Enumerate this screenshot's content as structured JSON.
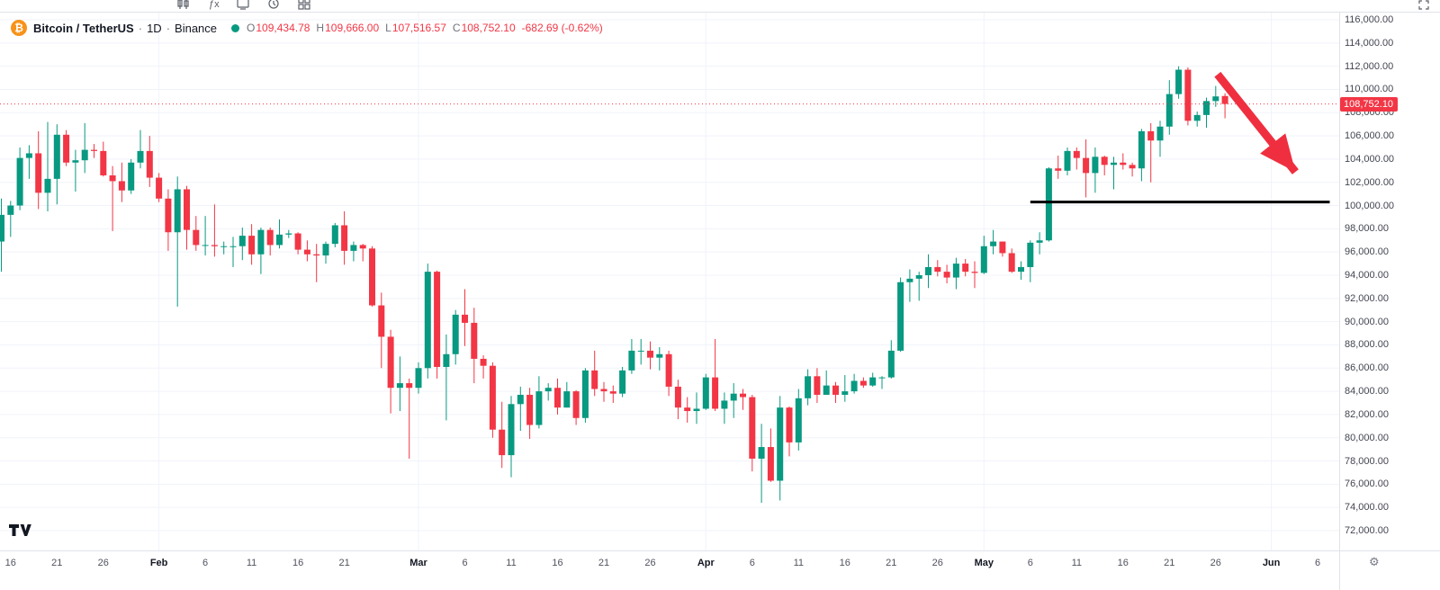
{
  "toolbar": {
    "icons": [
      {
        "name": "chart-type-candles"
      },
      {
        "name": "indicators"
      },
      {
        "name": "templates"
      },
      {
        "name": "alert-clock"
      },
      {
        "name": "grid-layout"
      }
    ]
  },
  "header": {
    "symbol_icon_glyph": "₿",
    "symbol": "Bitcoin / TetherUS",
    "separator": "·",
    "interval": "1D",
    "exchange": "Binance",
    "ohlc": {
      "o_label": "O",
      "o": "109,434.78",
      "h_label": "H",
      "h": "109,666.00",
      "l_label": "L",
      "l": "107,516.57",
      "c_label": "C",
      "c": "108,752.10",
      "change": "-682.69 (-0.62%)"
    }
  },
  "colors": {
    "up": "#089981",
    "down": "#f23645",
    "grid": "#f0f3fa",
    "axis_text": "#434651",
    "axis_border": "#e0e3eb",
    "current_price": "#f23645",
    "support_line": "#000000",
    "arrow": "#ef2f3f",
    "coin": "#f7931a"
  },
  "price_axis": {
    "ticks": [
      116000,
      114000,
      112000,
      110000,
      108000,
      106000,
      104000,
      102000,
      100000,
      98000,
      96000,
      94000,
      92000,
      90000,
      88000,
      86000,
      84000,
      82000,
      80000,
      78000,
      76000,
      74000,
      72000
    ],
    "current_price_label": "108,752.10"
  },
  "time_axis": {
    "labels": [
      {
        "text": "16",
        "index": 1
      },
      {
        "text": "21",
        "index": 6
      },
      {
        "text": "26",
        "index": 11
      },
      {
        "text": "Feb",
        "index": 17,
        "major": true
      },
      {
        "text": "6",
        "index": 22
      },
      {
        "text": "11",
        "index": 27
      },
      {
        "text": "16",
        "index": 32
      },
      {
        "text": "21",
        "index": 37
      },
      {
        "text": "Mar",
        "index": 45,
        "major": true
      },
      {
        "text": "6",
        "index": 50
      },
      {
        "text": "11",
        "index": 55
      },
      {
        "text": "16",
        "index": 60
      },
      {
        "text": "21",
        "index": 65
      },
      {
        "text": "26",
        "index": 70
      },
      {
        "text": "Apr",
        "index": 76,
        "major": true
      },
      {
        "text": "6",
        "index": 81
      },
      {
        "text": "11",
        "index": 86
      },
      {
        "text": "16",
        "index": 91
      },
      {
        "text": "21",
        "index": 96
      },
      {
        "text": "26",
        "index": 101
      },
      {
        "text": "May",
        "index": 106,
        "major": true
      },
      {
        "text": "6",
        "index": 111
      },
      {
        "text": "11",
        "index": 116
      },
      {
        "text": "16",
        "index": 121
      },
      {
        "text": "21",
        "index": 126
      },
      {
        "text": "26",
        "index": 131
      },
      {
        "text": "Jun",
        "index": 137,
        "major": true
      },
      {
        "text": "6",
        "index": 142
      }
    ]
  },
  "footer": {
    "settings_icon": "⚙"
  },
  "chart_data": {
    "type": "candlestick",
    "title": "Bitcoin / TetherUS · 1D · Binance",
    "symbol": "Bitcoin / TetherUS",
    "exchange": "Binance",
    "interval": "1D",
    "y_axis": {
      "min": 72000,
      "max": 116000,
      "tick_step": 2000,
      "unit": "USDT",
      "grid": true
    },
    "x_axis": {
      "unit": "day",
      "visible_span": "mid-January to early June"
    },
    "ohlc_current": {
      "open": 109434.78,
      "high": 109666.0,
      "low": 107516.57,
      "close": 108752.1,
      "change": -682.69,
      "change_percent": -0.62
    },
    "candles": [
      [
        96900,
        100600,
        94300,
        99200
      ],
      [
        99200,
        100400,
        97300,
        100000
      ],
      [
        100000,
        105000,
        99600,
        104100
      ],
      [
        104100,
        105200,
        102300,
        104500
      ],
      [
        104500,
        106400,
        99700,
        101100
      ],
      [
        101100,
        107200,
        99500,
        102300
      ],
      [
        102300,
        107000,
        100100,
        106100
      ],
      [
        106100,
        106500,
        103400,
        103700
      ],
      [
        103700,
        104800,
        101200,
        103900
      ],
      [
        103900,
        107100,
        102800,
        104800
      ],
      [
        104800,
        105300,
        104100,
        104700
      ],
      [
        104700,
        105500,
        102500,
        102600
      ],
      [
        102600,
        103400,
        97800,
        102100
      ],
      [
        102100,
        103700,
        100300,
        101300
      ],
      [
        101300,
        104000,
        101000,
        103700
      ],
      [
        103700,
        106500,
        103200,
        104700
      ],
      [
        104700,
        106000,
        101600,
        102400
      ],
      [
        102400,
        102800,
        100300,
        100600
      ],
      [
        100600,
        101400,
        96100,
        97700
      ],
      [
        97700,
        102500,
        91300,
        101400
      ],
      [
        101400,
        101700,
        96200,
        97900
      ],
      [
        97900,
        99100,
        96100,
        96600
      ],
      [
        96600,
        99100,
        95700,
        96600
      ],
      [
        96600,
        100100,
        95600,
        96500
      ],
      [
        96500,
        96900,
        95800,
        96500
      ],
      [
        96500,
        97300,
        94700,
        96500
      ],
      [
        96500,
        98100,
        95300,
        97400
      ],
      [
        97400,
        98400,
        94900,
        95800
      ],
      [
        95800,
        98100,
        94100,
        97900
      ],
      [
        97900,
        98100,
        95700,
        96600
      ],
      [
        96600,
        98800,
        96300,
        97500
      ],
      [
        97500,
        97900,
        97200,
        97600
      ],
      [
        97600,
        97700,
        95800,
        96200
      ],
      [
        96200,
        97000,
        95200,
        95800
      ],
      [
        95800,
        96700,
        93400,
        95700
      ],
      [
        95700,
        96900,
        95000,
        96700
      ],
      [
        96700,
        98500,
        96400,
        98300
      ],
      [
        98300,
        99500,
        94900,
        96100
      ],
      [
        96100,
        96900,
        95200,
        96600
      ],
      [
        96600,
        96700,
        95200,
        96300
      ],
      [
        96300,
        96500,
        91300,
        91400
      ],
      [
        91400,
        92500,
        86000,
        88700
      ],
      [
        88700,
        89300,
        82100,
        84300
      ],
      [
        84300,
        87000,
        82300,
        84700
      ],
      [
        84700,
        85100,
        78200,
        84300
      ],
      [
        84300,
        86500,
        83800,
        86000
      ],
      [
        86000,
        95000,
        85100,
        94300
      ],
      [
        94300,
        94400,
        85100,
        86100
      ],
      [
        86100,
        88900,
        81500,
        87200
      ],
      [
        87200,
        91000,
        86300,
        90600
      ],
      [
        90600,
        92800,
        87900,
        89900
      ],
      [
        89900,
        91200,
        84700,
        86800
      ],
      [
        86800,
        87100,
        85100,
        86200
      ],
      [
        86200,
        86500,
        80000,
        80700
      ],
      [
        80700,
        83100,
        77400,
        78500
      ],
      [
        78500,
        83600,
        76600,
        82900
      ],
      [
        82900,
        84400,
        80600,
        83700
      ],
      [
        83700,
        84300,
        79900,
        81100
      ],
      [
        81100,
        85300,
        80800,
        84000
      ],
      [
        84000,
        84700,
        83200,
        84300
      ],
      [
        84300,
        85100,
        82000,
        82600
      ],
      [
        82600,
        84800,
        82600,
        84000
      ],
      [
        84000,
        84100,
        81100,
        81700
      ],
      [
        81700,
        86000,
        81300,
        85800
      ],
      [
        85800,
        87500,
        83600,
        84200
      ],
      [
        84200,
        84800,
        83100,
        84000
      ],
      [
        84000,
        84500,
        83000,
        83800
      ],
      [
        83800,
        86100,
        83500,
        85800
      ],
      [
        85800,
        88500,
        85500,
        87500
      ],
      [
        87500,
        88500,
        86300,
        87500
      ],
      [
        87500,
        88300,
        85900,
        86900
      ],
      [
        86900,
        87800,
        85800,
        87200
      ],
      [
        87200,
        87500,
        83600,
        84400
      ],
      [
        84400,
        85000,
        81600,
        82600
      ],
      [
        82600,
        83500,
        81300,
        82300
      ],
      [
        82300,
        83900,
        81200,
        82500
      ],
      [
        82500,
        85500,
        82400,
        85200
      ],
      [
        85200,
        88500,
        82300,
        82500
      ],
      [
        82500,
        83900,
        81200,
        83200
      ],
      [
        83200,
        84700,
        81700,
        83800
      ],
      [
        83800,
        84200,
        82400,
        83500
      ],
      [
        83500,
        83700,
        77100,
        78200
      ],
      [
        78200,
        81200,
        74400,
        79200
      ],
      [
        79200,
        80800,
        76200,
        76300
      ],
      [
        76300,
        83600,
        74600,
        82600
      ],
      [
        82600,
        82700,
        78400,
        79600
      ],
      [
        79600,
        84200,
        78900,
        83400
      ],
      [
        83400,
        85900,
        82800,
        85300
      ],
      [
        85300,
        86000,
        83000,
        83700
      ],
      [
        83700,
        85800,
        83700,
        84500
      ],
      [
        84500,
        84800,
        83000,
        83700
      ],
      [
        83700,
        85400,
        83100,
        84000
      ],
      [
        84000,
        85500,
        83800,
        84900
      ],
      [
        84900,
        85200,
        84300,
        84500
      ],
      [
        84500,
        85600,
        84400,
        85200
      ],
      [
        85200,
        85300,
        84200,
        85200
      ],
      [
        85200,
        88400,
        85100,
        87500
      ],
      [
        87500,
        93800,
        87400,
        93400
      ],
      [
        93400,
        94500,
        91700,
        93700
      ],
      [
        93700,
        94300,
        91800,
        94000
      ],
      [
        94000,
        95800,
        92900,
        94700
      ],
      [
        94700,
        95300,
        93900,
        94300
      ],
      [
        94300,
        94900,
        93300,
        93800
      ],
      [
        93800,
        95500,
        92800,
        95000
      ],
      [
        95000,
        95400,
        93900,
        94300
      ],
      [
        94300,
        95200,
        92900,
        94200
      ],
      [
        94200,
        97400,
        94100,
        96500
      ],
      [
        96500,
        97900,
        95800,
        96900
      ],
      [
        96900,
        96900,
        95600,
        95900
      ],
      [
        95900,
        96300,
        94200,
        94300
      ],
      [
        94300,
        95200,
        93600,
        94700
      ],
      [
        94700,
        97000,
        93400,
        96800
      ],
      [
        96800,
        97700,
        95800,
        97000
      ],
      [
        97000,
        103300,
        96900,
        103200
      ],
      [
        103200,
        104300,
        102300,
        103000
      ],
      [
        103000,
        105000,
        102600,
        104700
      ],
      [
        104700,
        105000,
        103100,
        104100
      ],
      [
        104100,
        105700,
        100700,
        102800
      ],
      [
        102800,
        105000,
        101100,
        104200
      ],
      [
        104200,
        104300,
        102600,
        103500
      ],
      [
        103500,
        104200,
        101400,
        103700
      ],
      [
        103700,
        104500,
        103100,
        103500
      ],
      [
        103500,
        103700,
        102500,
        103200
      ],
      [
        103200,
        106600,
        102100,
        106400
      ],
      [
        106400,
        107100,
        102000,
        105600
      ],
      [
        105600,
        107300,
        104200,
        106800
      ],
      [
        106800,
        110800,
        106100,
        109600
      ],
      [
        109600,
        112000,
        109200,
        111700
      ],
      [
        111700,
        111900,
        106900,
        107300
      ],
      [
        107300,
        108100,
        106800,
        107800
      ],
      [
        107800,
        109300,
        106700,
        109000
      ],
      [
        109000,
        110300,
        108500,
        109400
      ],
      [
        109434.78,
        109666,
        107516.57,
        108752.1
      ]
    ],
    "annotations": {
      "support_line": {
        "price": 100300,
        "from_index": 111,
        "to_index": 143.3,
        "color": "#000000",
        "width": 3
      },
      "arrow": {
        "from": {
          "index": 131.2,
          "price": 111300
        },
        "to": {
          "index": 139.6,
          "price": 102900
        },
        "color": "#ef2f3f",
        "width": 9
      },
      "current_price_line": {
        "price": 108752.1,
        "style": "dotted",
        "color": "#f23645"
      }
    }
  }
}
